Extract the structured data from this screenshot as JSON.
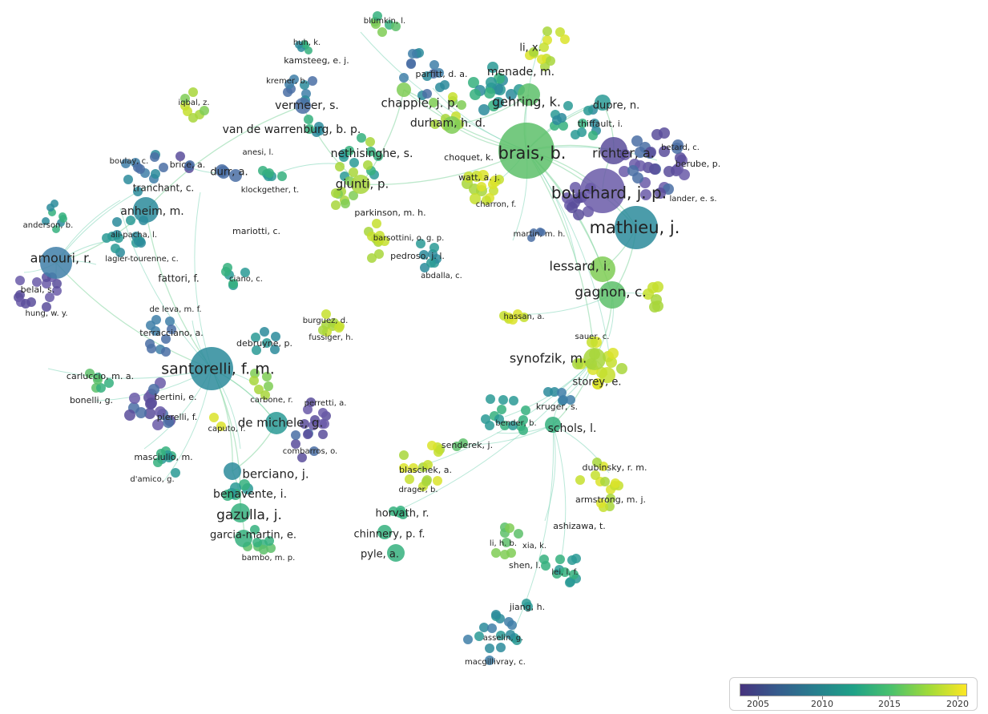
{
  "legend": {
    "ticks": [
      "2005",
      "2010",
      "2015",
      "2020"
    ],
    "gradient": [
      "#46337e",
      "#365c8d",
      "#277f8e",
      "#1fa187",
      "#4ac16d",
      "#a0da39",
      "#fde725"
    ]
  },
  "labels": [
    {
      "id": "blumkin",
      "text": "blumkin, l."
    },
    {
      "id": "huh",
      "text": "huh, k."
    },
    {
      "id": "kamsteeg",
      "text": "kamsteeg, e. j."
    },
    {
      "id": "kremer",
      "text": "kremer, b."
    },
    {
      "id": "iqbal",
      "text": "iqbal, z."
    },
    {
      "id": "vermeer",
      "text": "vermeer, s."
    },
    {
      "id": "vandewarrenburg",
      "text": "van de warrenburg, b. p."
    },
    {
      "id": "lix",
      "text": "li, x."
    },
    {
      "id": "parfitt",
      "text": "parfitt, d. a."
    },
    {
      "id": "menade",
      "text": "menade, m."
    },
    {
      "id": "chapple",
      "text": "chapple, j. p."
    },
    {
      "id": "gehring",
      "text": "gehring, k."
    },
    {
      "id": "dupre",
      "text": "dupre, n."
    },
    {
      "id": "thiffault",
      "text": "thiffault, i."
    },
    {
      "id": "durham",
      "text": "durham, h. d."
    },
    {
      "id": "nethisinghe",
      "text": "nethisinghe, s."
    },
    {
      "id": "brais",
      "text": "brais, b."
    },
    {
      "id": "richter",
      "text": "richter, a."
    },
    {
      "id": "betard",
      "text": "betard, c."
    },
    {
      "id": "berube",
      "text": "berube, p."
    },
    {
      "id": "choquet",
      "text": "choquet, k."
    },
    {
      "id": "watt",
      "text": "watt, a. j."
    },
    {
      "id": "anesi",
      "text": "anesi, l."
    },
    {
      "id": "boulay",
      "text": "boulay, c."
    },
    {
      "id": "brice",
      "text": "brice, a."
    },
    {
      "id": "durr",
      "text": "durr, a."
    },
    {
      "id": "klockgether",
      "text": "klockgether, t."
    },
    {
      "id": "giunti",
      "text": "giunti, p."
    },
    {
      "id": "bouchard",
      "text": "bouchard, j. p."
    },
    {
      "id": "lander",
      "text": "lander, e. s."
    },
    {
      "id": "tranchant",
      "text": "tranchant, c."
    },
    {
      "id": "charron",
      "text": "charron, f."
    },
    {
      "id": "anheim",
      "text": "anheim, m."
    },
    {
      "id": "parkinson",
      "text": "parkinson, m. h."
    },
    {
      "id": "anderson",
      "text": "anderson, b."
    },
    {
      "id": "mariotti",
      "text": "mariotti, c."
    },
    {
      "id": "alipacha",
      "text": "ali-pacha, l."
    },
    {
      "id": "barsottini",
      "text": "barsottini, o. g. p."
    },
    {
      "id": "martin",
      "text": "martin, m. h."
    },
    {
      "id": "mathieu",
      "text": "mathieu, j."
    },
    {
      "id": "amouri",
      "text": "amouri, r."
    },
    {
      "id": "lagier",
      "text": "lagier-tourenne, c."
    },
    {
      "id": "pedroso",
      "text": "pedroso, j. l."
    },
    {
      "id": "lessard",
      "text": "lessard, i."
    },
    {
      "id": "abdalla",
      "text": "abdalla, c."
    },
    {
      "id": "fattori",
      "text": "fattori, f."
    },
    {
      "id": "ciano",
      "text": "ciano, c."
    },
    {
      "id": "belal",
      "text": "belal, s."
    },
    {
      "id": "gagnon",
      "text": "gagnon, c."
    },
    {
      "id": "hung",
      "text": "hung, w. y."
    },
    {
      "id": "deleva",
      "text": "de leva, m. f."
    },
    {
      "id": "hassan",
      "text": "hassan, a."
    },
    {
      "id": "burguez",
      "text": "burguez, d."
    },
    {
      "id": "fussiger",
      "text": "fussiger, h."
    },
    {
      "id": "terracciano",
      "text": "terracciano, a."
    },
    {
      "id": "sauer",
      "text": "sauer, c."
    },
    {
      "id": "debruyne",
      "text": "debruyne, p."
    },
    {
      "id": "synofzik",
      "text": "synofzik, m."
    },
    {
      "id": "santorelli",
      "text": "santorelli, f. m."
    },
    {
      "id": "carluccio",
      "text": "carluccio, m. a."
    },
    {
      "id": "storey",
      "text": "storey, e."
    },
    {
      "id": "bonelli",
      "text": "bonelli, g."
    },
    {
      "id": "bertini",
      "text": "bertini, e."
    },
    {
      "id": "carbone",
      "text": "carbone, r."
    },
    {
      "id": "perretti",
      "text": "perretti, a."
    },
    {
      "id": "kruger",
      "text": "kruger, s."
    },
    {
      "id": "pierelli",
      "text": "pierelli, f."
    },
    {
      "id": "demichele",
      "text": "de michele, g."
    },
    {
      "id": "bender",
      "text": "bender, b."
    },
    {
      "id": "caputo",
      "text": "caputo, r."
    },
    {
      "id": "schols",
      "text": "schols, l."
    },
    {
      "id": "senderek",
      "text": "senderek, j."
    },
    {
      "id": "combarros",
      "text": "combarros, o."
    },
    {
      "id": "masciulio",
      "text": "masciulio, m."
    },
    {
      "id": "dubinsky",
      "text": "dubinsky, r. m."
    },
    {
      "id": "blaschek",
      "text": "blaschek, a."
    },
    {
      "id": "damico",
      "text": "d'amico, g."
    },
    {
      "id": "berciano",
      "text": "berciano, j."
    },
    {
      "id": "drager",
      "text": "drager, b."
    },
    {
      "id": "armstrong",
      "text": "armstrong, m. j."
    },
    {
      "id": "benavente",
      "text": "benavente, i."
    },
    {
      "id": "gazulla",
      "text": "gazulla, j."
    },
    {
      "id": "horvath",
      "text": "horvath, r."
    },
    {
      "id": "ashizawa",
      "text": "ashizawa, t."
    },
    {
      "id": "garciamartin",
      "text": "garcia-martin, e."
    },
    {
      "id": "chinnery",
      "text": "chinnery, p. f."
    },
    {
      "id": "lihb",
      "text": "li, h. b."
    },
    {
      "id": "xia",
      "text": "xia, k."
    },
    {
      "id": "pyle",
      "text": "pyle, a."
    },
    {
      "id": "bambo",
      "text": "bambo, m. p."
    },
    {
      "id": "shen",
      "text": "shen, l."
    },
    {
      "id": "lei",
      "text": "lei, l. f."
    },
    {
      "id": "jiang",
      "text": "jiang, h."
    },
    {
      "id": "asselin",
      "text": "asselin, g."
    },
    {
      "id": "macgillivray",
      "text": "macgillivray, c."
    }
  ]
}
